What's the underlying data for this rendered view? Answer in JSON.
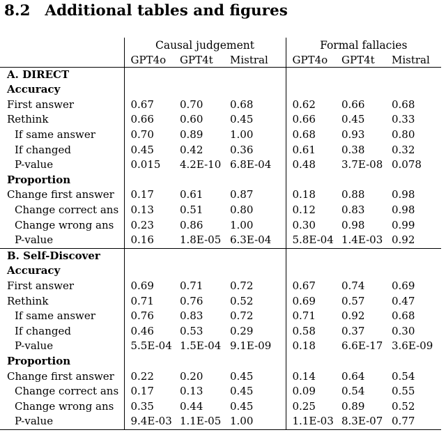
{
  "page": {
    "heading_number": "8.2",
    "heading_title": "Additional tables and figures"
  },
  "table": {
    "group_headers": [
      "Causal judgement",
      "Formal fallacies"
    ],
    "model_headers": [
      "GPT4o",
      "GPT4t",
      "Mistral",
      "GPT4o",
      "GPT4t",
      "Mistral"
    ],
    "sections": [
      {
        "title": "A. DIRECT",
        "subsections": [
          {
            "title": "Accuracy",
            "rows": [
              {
                "label": "First answer",
                "indent": false,
                "values": [
                  "0.67",
                  "0.70",
                  "0.68",
                  "0.62",
                  "0.66",
                  "0.68"
                ]
              },
              {
                "label": "Rethink",
                "indent": false,
                "values": [
                  "0.66",
                  "0.60",
                  "0.45",
                  "0.66",
                  "0.45",
                  "0.33"
                ]
              },
              {
                "label": "If same answer",
                "indent": true,
                "values": [
                  "0.70",
                  "0.89",
                  "1.00",
                  "0.68",
                  "0.93",
                  "0.80"
                ]
              },
              {
                "label": "If changed",
                "indent": true,
                "values": [
                  "0.45",
                  "0.42",
                  "0.36",
                  "0.61",
                  "0.38",
                  "0.32"
                ]
              },
              {
                "label": "P-value",
                "indent": true,
                "values": [
                  "0.015",
                  "4.2E-10",
                  "6.8E-04",
                  "0.48",
                  "3.7E-08",
                  "0.078"
                ]
              }
            ]
          },
          {
            "title": "Proportion",
            "rows": [
              {
                "label": "Change first answer",
                "indent": false,
                "values": [
                  "0.17",
                  "0.61",
                  "0.87",
                  "0.18",
                  "0.88",
                  "0.98"
                ]
              },
              {
                "label": "Change correct ans",
                "indent": true,
                "values": [
                  "0.13",
                  "0.51",
                  "0.80",
                  "0.12",
                  "0.83",
                  "0.98"
                ]
              },
              {
                "label": "Change wrong ans",
                "indent": true,
                "values": [
                  "0.23",
                  "0.86",
                  "1.00",
                  "0.30",
                  "0.98",
                  "0.99"
                ]
              },
              {
                "label": "P-value",
                "indent": true,
                "values": [
                  "0.16",
                  "1.8E-05",
                  "6.3E-04",
                  "5.8E-04",
                  "1.4E-03",
                  "0.92"
                ]
              }
            ]
          }
        ]
      },
      {
        "title": "B. Self-Discover",
        "subsections": [
          {
            "title": "Accuracy",
            "rows": [
              {
                "label": "First answer",
                "indent": false,
                "values": [
                  "0.69",
                  "0.71",
                  "0.72",
                  "0.67",
                  "0.74",
                  "0.69"
                ]
              },
              {
                "label": "Rethink",
                "indent": false,
                "values": [
                  "0.71",
                  "0.76",
                  "0.52",
                  "0.69",
                  "0.57",
                  "0.47"
                ]
              },
              {
                "label": "If same answer",
                "indent": true,
                "values": [
                  "0.76",
                  "0.83",
                  "0.72",
                  "0.71",
                  "0.92",
                  "0.68"
                ]
              },
              {
                "label": "If changed",
                "indent": true,
                "values": [
                  "0.46",
                  "0.53",
                  "0.29",
                  "0.58",
                  "0.37",
                  "0.30"
                ]
              },
              {
                "label": "P-value",
                "indent": true,
                "values": [
                  "5.5E-04",
                  "1.5E-04",
                  "9.1E-09",
                  "0.18",
                  "6.6E-17",
                  "3.6E-09"
                ]
              }
            ]
          },
          {
            "title": "Proportion",
            "rows": [
              {
                "label": "Change first answer",
                "indent": false,
                "values": [
                  "0.22",
                  "0.20",
                  "0.45",
                  "0.14",
                  "0.64",
                  "0.54"
                ]
              },
              {
                "label": "Change correct ans",
                "indent": true,
                "values": [
                  "0.17",
                  "0.13",
                  "0.45",
                  "0.09",
                  "0.54",
                  "0.55"
                ]
              },
              {
                "label": "Change wrong ans",
                "indent": true,
                "values": [
                  "0.35",
                  "0.44",
                  "0.45",
                  "0.25",
                  "0.89",
                  "0.52"
                ]
              },
              {
                "label": "P-value",
                "indent": true,
                "values": [
                  "9.4E-03",
                  "1.1E-05",
                  "1.00",
                  "1.1E-03",
                  "8.3E-07",
                  "0.77"
                ]
              }
            ]
          }
        ]
      }
    ]
  }
}
